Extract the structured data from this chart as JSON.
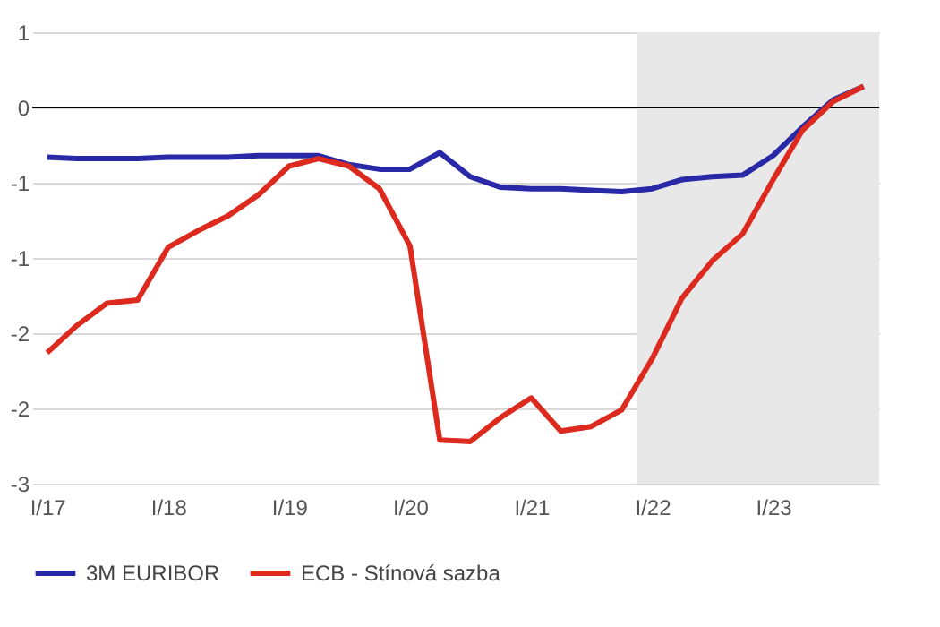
{
  "chart_data": {
    "type": "line",
    "x": [
      "2017-02-15",
      "2017-05-15",
      "2017-08-15",
      "2017-11-15",
      "2018-02-15",
      "2018-05-15",
      "2018-08-15",
      "2018-11-15",
      "2019-02-15",
      "2019-05-15",
      "2019-08-15",
      "2019-11-15",
      "2020-02-15",
      "2020-05-15",
      "2020-08-15",
      "2020-11-15",
      "2021-02-15",
      "2021-05-15",
      "2021-08-15",
      "2021-11-15",
      "2022-02-15",
      "2022-05-15",
      "2022-08-15",
      "2022-11-15",
      "2023-02-15",
      "2023-05-15",
      "2023-08-15",
      "2023-11-15"
    ],
    "series": [
      {
        "name": "3M EURIBOR",
        "color": "#2929a8",
        "values": [
          -0.33,
          -0.34,
          -0.34,
          -0.34,
          -0.33,
          -0.33,
          -0.33,
          -0.32,
          -0.32,
          -0.32,
          -0.38,
          -0.41,
          -0.41,
          -0.3,
          -0.46,
          -0.53,
          -0.54,
          -0.54,
          -0.55,
          -0.56,
          -0.54,
          -0.48,
          -0.46,
          -0.45,
          -0.32,
          -0.13,
          0.05,
          0.14
        ]
      },
      {
        "name": "ECB - Stínová sazba",
        "color": "#dc2a1f",
        "values": [
          -1.63,
          -1.45,
          -1.3,
          -1.28,
          -0.93,
          -0.82,
          -0.72,
          -0.58,
          -0.39,
          -0.34,
          -0.39,
          -0.54,
          -0.92,
          -2.21,
          -2.22,
          -2.06,
          -1.93,
          -2.15,
          -2.12,
          -2.01,
          -1.67,
          -1.27,
          -1.02,
          -0.84,
          -0.48,
          -0.15,
          0.04,
          0.14
        ]
      }
    ],
    "xlim": [
      "2017-01-01",
      "2024-01-01"
    ],
    "xticks": [
      {
        "value": "2017-02-15",
        "label": "I/17"
      },
      {
        "value": "2018-02-15",
        "label": "I/18"
      },
      {
        "value": "2019-02-15",
        "label": "I/19"
      },
      {
        "value": "2020-02-15",
        "label": "I/20"
      },
      {
        "value": "2021-02-15",
        "label": "I/21"
      },
      {
        "value": "2022-02-15",
        "label": "I/22"
      },
      {
        "value": "2023-02-15",
        "label": "I/23"
      }
    ],
    "ylim": [
      -2.5,
      0.5
    ],
    "yticks": [
      {
        "value": 0.5,
        "label": "1"
      },
      {
        "value": 0,
        "label": "0"
      },
      {
        "value": -0.5,
        "label": "-1"
      },
      {
        "value": -1,
        "label": "-1"
      },
      {
        "value": -1.5,
        "label": "-2"
      },
      {
        "value": -2,
        "label": "-2"
      },
      {
        "value": -2.5,
        "label": "-3"
      }
    ],
    "bands": [
      {
        "axis": "x",
        "from": "2022-01-01",
        "to": "2024-01-01",
        "color": "#e8e8e8"
      }
    ],
    "grid": "y",
    "legend": "bottom",
    "marker": "none",
    "line_style": "solid"
  }
}
